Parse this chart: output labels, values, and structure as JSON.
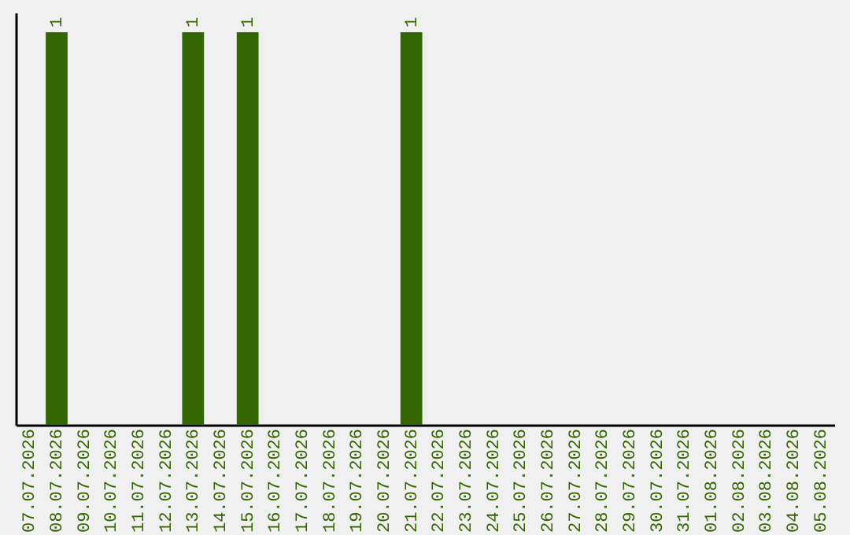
{
  "chart_data": {
    "type": "bar",
    "categories": [
      "07.07.2026",
      "08.07.2026",
      "09.07.2026",
      "10.07.2026",
      "11.07.2026",
      "12.07.2026",
      "13.07.2026",
      "14.07.2026",
      "15.07.2026",
      "16.07.2026",
      "17.07.2026",
      "18.07.2026",
      "19.07.2026",
      "20.07.2026",
      "21.07.2026",
      "22.07.2026",
      "23.07.2026",
      "24.07.2026",
      "25.07.2026",
      "26.07.2026",
      "27.07.2026",
      "28.07.2026",
      "29.07.2026",
      "30.07.2026",
      "31.07.2026",
      "01.08.2026",
      "02.08.2026",
      "03.08.2026",
      "04.08.2026",
      "05.08.2026"
    ],
    "values": [
      0,
      1,
      0,
      0,
      0,
      0,
      1,
      0,
      1,
      0,
      0,
      0,
      0,
      0,
      1,
      0,
      0,
      0,
      0,
      0,
      0,
      0,
      0,
      0,
      0,
      0,
      0,
      0,
      0,
      0
    ],
    "value_labels": [
      null,
      "1",
      null,
      null,
      null,
      null,
      "1",
      null,
      "1",
      null,
      null,
      null,
      null,
      null,
      "1",
      null,
      null,
      null,
      null,
      null,
      null,
      null,
      null,
      null,
      null,
      null,
      null,
      null,
      null,
      null
    ],
    "color": "#336600",
    "ylim": [
      0,
      1.05
    ],
    "tick_labels": "x"
  }
}
